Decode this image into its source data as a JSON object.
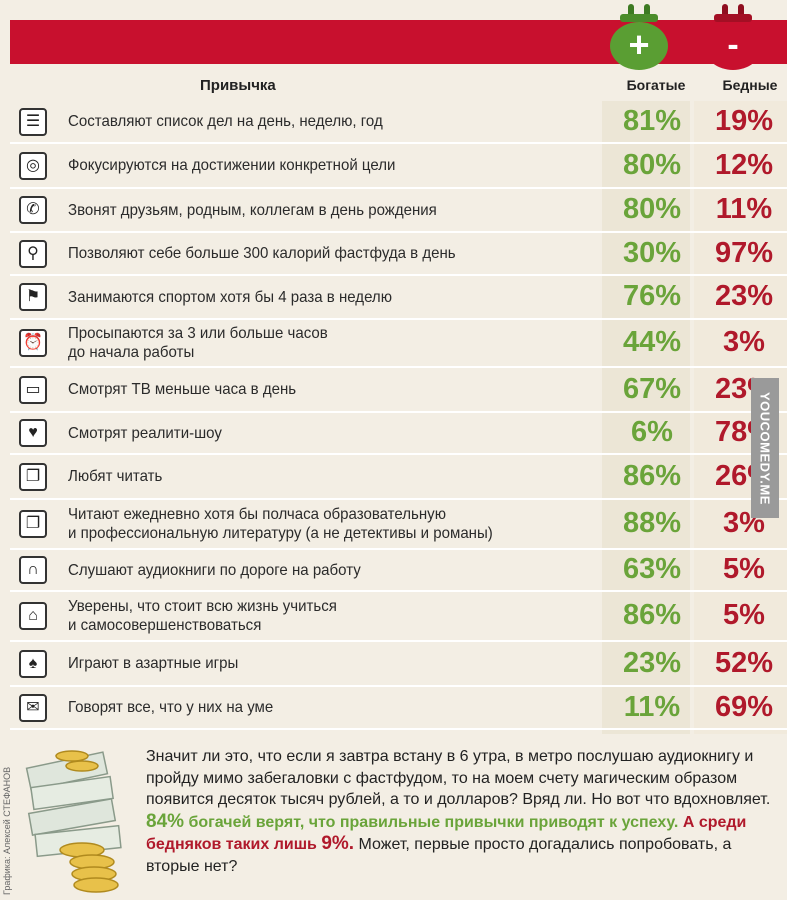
{
  "header": {
    "habit": "Привычка",
    "rich": "Богатые",
    "poor": "Бедные",
    "plus_symbol": "+",
    "minus_symbol": "-"
  },
  "colors": {
    "banner": "#c8102e",
    "rich": "#6aa43a",
    "poor": "#b0192b",
    "purse_plus": "#5a9e33",
    "purse_minus": "#c8102e"
  },
  "chart_data": {
    "type": "table",
    "columns": [
      "Привычка",
      "Богатые",
      "Бедные"
    ],
    "rows": [
      {
        "icon": "list-icon",
        "habit": "Составляют список дел на день, неделю, год",
        "rich": "81%",
        "poor": "19%"
      },
      {
        "icon": "target-icon",
        "habit": "Фокусируются на достижении конкретной цели",
        "rich": "80%",
        "poor": "12%"
      },
      {
        "icon": "phone-icon",
        "habit": "Звонят друзьям, родным, коллегам в день рождения",
        "rich": "80%",
        "poor": "11%"
      },
      {
        "icon": "spoon-icon",
        "habit": "Позволяют себе больше 300 калорий фастфуда в день",
        "rich": "30%",
        "poor": "97%"
      },
      {
        "icon": "runner-icon",
        "habit": "Занимаются спортом хотя бы 4 раза в неделю",
        "rich": "76%",
        "poor": "23%"
      },
      {
        "icon": "alarm-clock-icon",
        "habit": "Просыпаются за 3 или больше часов\nдо начала работы",
        "rich": "44%",
        "poor": "3%"
      },
      {
        "icon": "tv-icon",
        "habit": "Смотрят ТВ меньше часа в день",
        "rich": "67%",
        "poor": "23%"
      },
      {
        "icon": "tv-heart-icon",
        "habit": "Смотрят реалити-шоу",
        "rich": "6%",
        "poor": "78%"
      },
      {
        "icon": "book-icon",
        "habit": "Любят читать",
        "rich": "86%",
        "poor": "26%"
      },
      {
        "icon": "book-icon",
        "habit": "Читают ежедневно хотя бы полчаса образовательную\nи профессиональную литературу (а не детективы и романы)",
        "rich": "88%",
        "poor": "3%"
      },
      {
        "icon": "headphones-icon",
        "habit": "Слушают аудиокниги по дороге на работу",
        "rich": "63%",
        "poor": "5%"
      },
      {
        "icon": "graduation-cap-icon",
        "habit": "Уверены, что стоит всю жизнь учиться\nи самосовершенствоваться",
        "rich": "86%",
        "poor": "5%"
      },
      {
        "icon": "spade-icon",
        "habit": "Играют в азартные игры",
        "rich": "23%",
        "poor": "52%"
      },
      {
        "icon": "speech-bubble-icon",
        "habit": "Говорят все, что у них на уме",
        "rich": "11%",
        "poor": "69%"
      }
    ]
  },
  "footer": {
    "line1": "Значит ли это, что если я завтра встану в 6 утра, в метро послушаю аудиокнигу и пройду мимо забегаловки с фастфудом, то на моем счету магическим образом появится десяток тысяч рублей, а то и долларов?",
    "line2_lead": "Вряд ли. Но вот что вдохновляет.",
    "rich_pct": "84%",
    "rich_text": "богачей верят, что правильные привычки приводят к успеху.",
    "poor_text": "А среди бедняков таких лишь",
    "poor_pct": "9%.",
    "line3": "Может, первые просто догадались попробовать, а вторые нет?"
  },
  "watermark": "YOUCOMEDY.ME",
  "credit": "Графика: Алексей СТЕФАНОВ"
}
